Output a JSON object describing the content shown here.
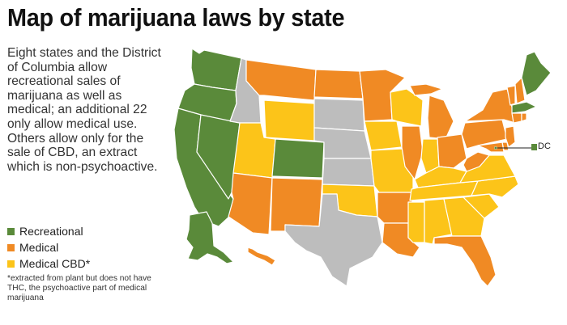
{
  "title": "Map of marijuana laws by state",
  "intro": "Eight states and the District of Columbia allow recreational sales of marijuana as well as medical; an additional 22 only allow medical use. Others allow only for the sale of CBD, an extract which is non-psychoactive.",
  "legend": [
    {
      "label": "Recreational",
      "color": "#5a8a3a"
    },
    {
      "label": "Medical",
      "color": "#f08a24"
    },
    {
      "label": "Medical CBD*",
      "color": "#fcc419"
    }
  ],
  "footnote": "*extracted from plant but does not have THC, the psychoactive part of medical marijuana",
  "dc_label": "DC",
  "colors": {
    "recreational": "#5a8a3a",
    "medical": "#f08a24",
    "cbd": "#fcc419",
    "none": "#bdbdbd"
  },
  "map": {
    "states_by_category": {
      "recreational": [
        "Washington",
        "Oregon",
        "California",
        "Nevada",
        "Colorado",
        "Alaska",
        "Maine",
        "Massachusetts",
        "District of Columbia"
      ],
      "medical": [
        "Montana",
        "North Dakota",
        "Minnesota",
        "Arizona",
        "New Mexico",
        "Arkansas",
        "Louisiana",
        "Illinois",
        "Michigan",
        "Ohio",
        "Pennsylvania",
        "New York",
        "Vermont",
        "New Hampshire",
        "New Jersey",
        "Connecticut",
        "Rhode Island",
        "Delaware",
        "Maryland",
        "West Virginia",
        "Florida",
        "Hawaii"
      ],
      "cbd": [
        "Wyoming",
        "Utah",
        "Iowa",
        "Wisconsin",
        "Missouri",
        "Oklahoma",
        "Kentucky",
        "Tennessee",
        "Mississippi",
        "Alabama",
        "Georgia",
        "South Carolina",
        "North Carolina",
        "Virginia",
        "Indiana"
      ],
      "none": [
        "Idaho",
        "South Dakota",
        "Nebraska",
        "Kansas",
        "Texas"
      ]
    }
  }
}
